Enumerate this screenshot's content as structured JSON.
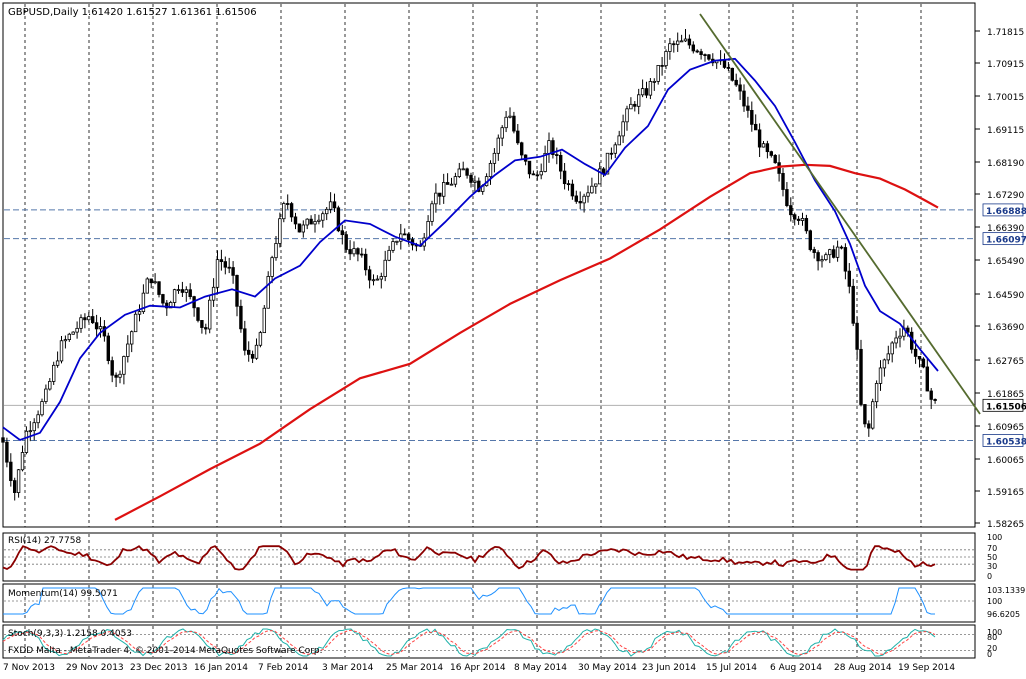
{
  "main_panel": {
    "header": "GBPUSD,Daily  1.61420 1.61527 1.61361 1.61506",
    "y_ticks": [
      "1.71815",
      "1.70915",
      "1.70015",
      "1.69115",
      "1.68190",
      "1.67290",
      "1.66390",
      "1.65490",
      "1.64590",
      "1.63690",
      "1.62765",
      "1.61865",
      "1.60965",
      "1.60065",
      "1.59165",
      "1.58265"
    ],
    "price_tags": [
      {
        "label": "1.66888",
        "value": 1.66888,
        "bg": "#ffffff",
        "fg": "#1a3a8a",
        "line": "#5577aa"
      },
      {
        "label": "1.66097",
        "value": 1.66097,
        "bg": "#ffffff",
        "fg": "#1a3a8a",
        "line": "#5577aa"
      },
      {
        "label": "1.61506",
        "value": 1.61506,
        "bg": "#ffffff",
        "fg": "#000000",
        "line": "#b0b0b0"
      },
      {
        "label": "1.60538",
        "value": 1.60538,
        "bg": "#ffffff",
        "fg": "#1a3a8a",
        "line": "#5577aa"
      }
    ]
  },
  "rsi_panel": {
    "header": "RSI(14) 27.7758",
    "levels": [
      "100",
      "70",
      "50",
      "30",
      "0"
    ]
  },
  "momentum_panel": {
    "header": "Momentum(14) 99.5071",
    "levels": [
      "103.1339",
      "100",
      "96.6205"
    ]
  },
  "stoch_panel": {
    "header": "Stoch(9,3,3) 1.2158 0.4053",
    "levels": [
      "100",
      "80",
      "20",
      "0"
    ],
    "footer": "FXDD Malta - MetaTrader 4, © 2001-2014 MetaQuotes Software Corp."
  },
  "x_axis": {
    "labels": [
      "7 Nov 2013",
      "29 Nov 2013",
      "23 Dec 2013",
      "16 Jan 2014",
      "7 Feb 2014",
      "3 Mar 2014",
      "25 Mar 2014",
      "16 Apr 2014",
      "8 May 2014",
      "30 May 2014",
      "23 Jun 2014",
      "15 Jul 2014",
      "6 Aug 2014",
      "28 Aug 2014",
      "19 Sep 2014"
    ]
  },
  "colors": {
    "candles": "#000000",
    "ma_fast": "#0000cc",
    "ma_slow": "#dd1111",
    "trendline": "#556b2f",
    "rsi": "#8b0000",
    "momentum": "#1e90ff",
    "stoch_main": "#20b2aa",
    "stoch_signal": "#ff4444"
  }
}
